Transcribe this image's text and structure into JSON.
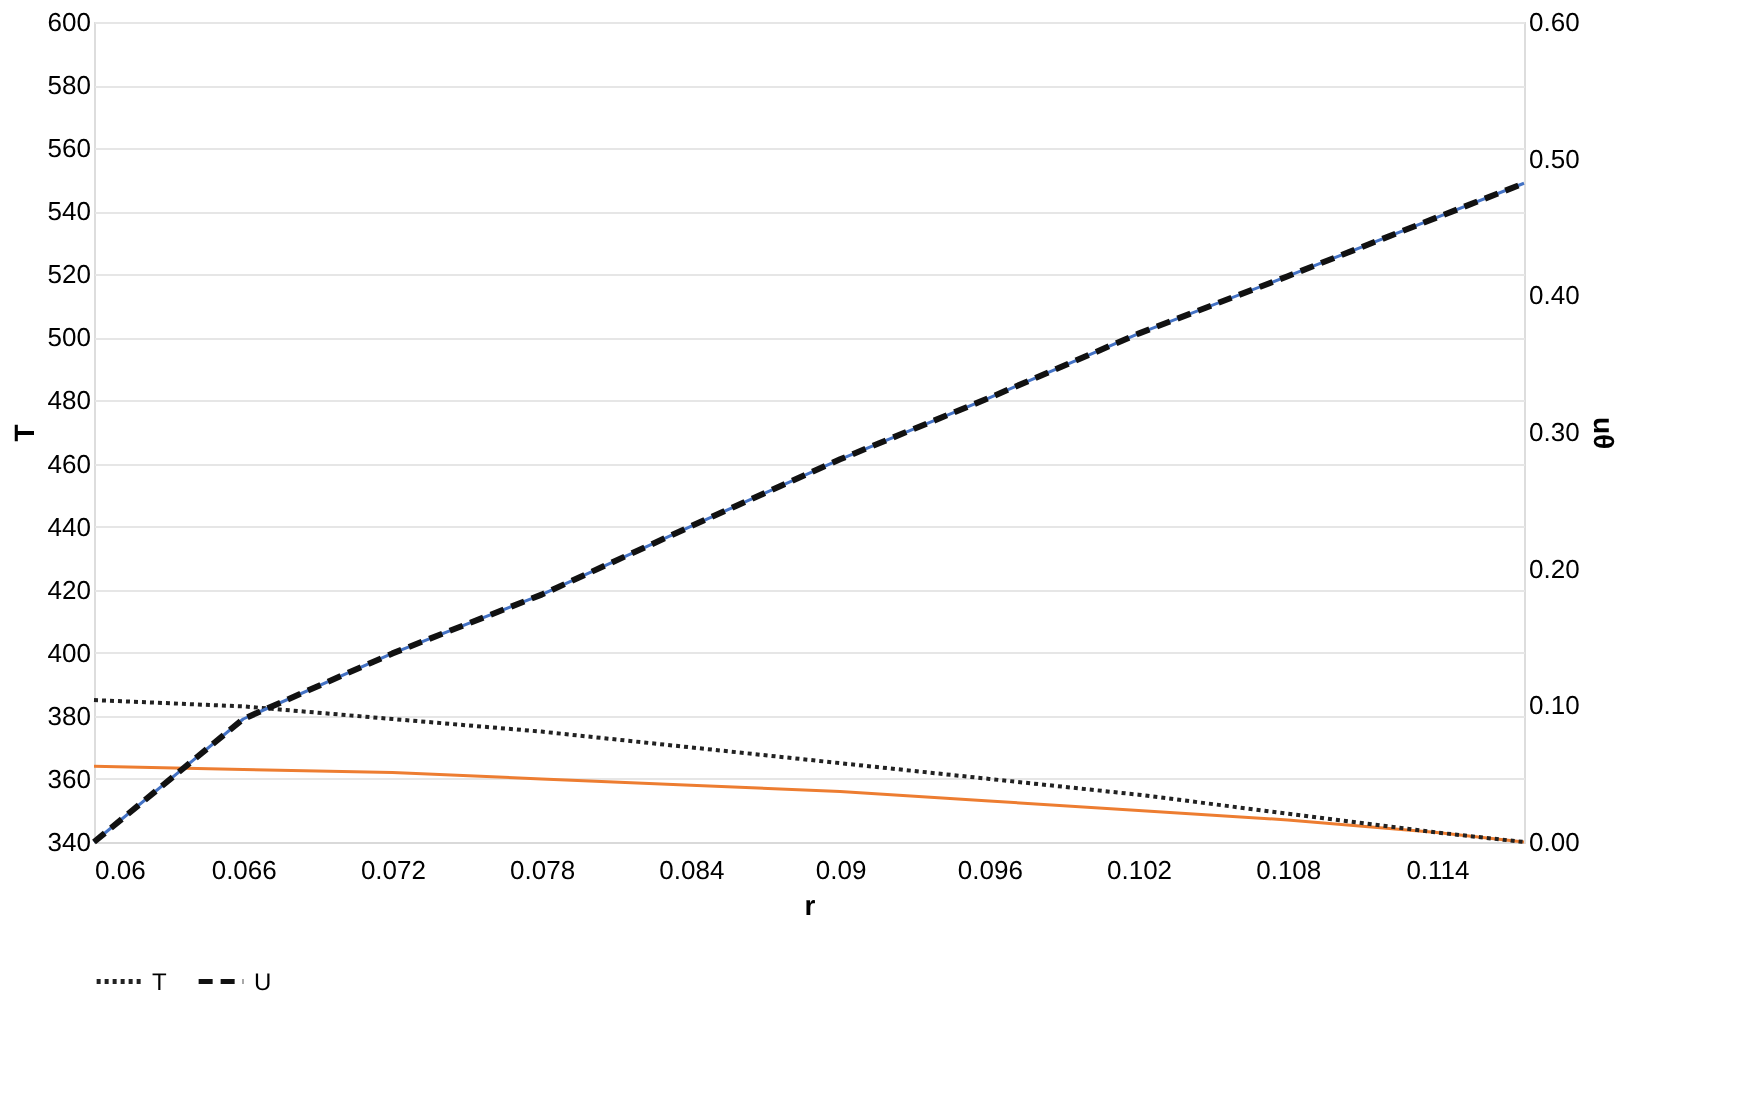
{
  "chart_data": {
    "type": "line",
    "xlabel": "r",
    "ylabel": "T",
    "y2label": "uθ",
    "xlim": [
      0.06,
      0.1175
    ],
    "xticks": [
      0.06,
      0.066,
      0.072,
      0.078,
      0.084,
      0.09,
      0.096,
      0.102,
      0.108,
      0.114
    ],
    "ylim": [
      340,
      600
    ],
    "yticks": [
      340,
      360,
      380,
      400,
      420,
      440,
      460,
      480,
      500,
      520,
      540,
      560,
      580,
      600
    ],
    "y2lim": [
      0,
      0.6
    ],
    "y2ticks": [
      {
        "value": 0,
        "label": "0.00"
      },
      {
        "value": 0.1,
        "label": "0.10"
      },
      {
        "value": 0.2,
        "label": "0.20"
      },
      {
        "value": 0.3,
        "label": "0.30"
      },
      {
        "value": 0.4,
        "label": "0.40"
      },
      {
        "value": 0.5,
        "label": "0.50"
      },
      {
        "value": 0.6,
        "label": "0.60"
      }
    ],
    "grid": "y",
    "legend": "bottom",
    "marker": "none",
    "series": [
      {
        "color": "#ed7d31",
        "line_style": "solid",
        "x": [
          0.06,
          0.066,
          0.072,
          0.078,
          0.084,
          0.09,
          0.096,
          0.102,
          0.108,
          0.114,
          0.1175
        ],
        "values": [
          364,
          363,
          362,
          360,
          358,
          356,
          353,
          350,
          347,
          343,
          340
        ]
      },
      {
        "name": "T",
        "color": "#222222",
        "line_style": "dotted",
        "x": [
          0.06,
          0.066,
          0.072,
          0.078,
          0.084,
          0.09,
          0.096,
          0.102,
          0.108,
          0.114,
          0.1175
        ],
        "values": [
          385,
          383,
          379,
          375,
          370,
          365,
          360,
          355,
          349,
          343,
          340
        ]
      },
      {
        "color": "#4472c4",
        "line_style": "solid",
        "axis": "y2",
        "x": [
          0.06,
          0.066,
          0.072,
          0.078,
          0.084,
          0.09,
          0.096,
          0.102,
          0.108,
          0.114,
          0.1175
        ],
        "values": [
          0,
          0.09,
          0.138,
          0.181,
          0.231,
          0.28,
          0.325,
          0.372,
          0.414,
          0.457,
          0.482
        ]
      },
      {
        "name": "U",
        "color": "#111111",
        "line_style": "dashed",
        "axis": "y2",
        "x": [
          0.06,
          0.066,
          0.072,
          0.078,
          0.084,
          0.09,
          0.096,
          0.102,
          0.108,
          0.114,
          0.1175
        ],
        "values": [
          0,
          0.09,
          0.138,
          0.181,
          0.231,
          0.28,
          0.325,
          0.372,
          0.414,
          0.457,
          0.482
        ]
      }
    ]
  }
}
